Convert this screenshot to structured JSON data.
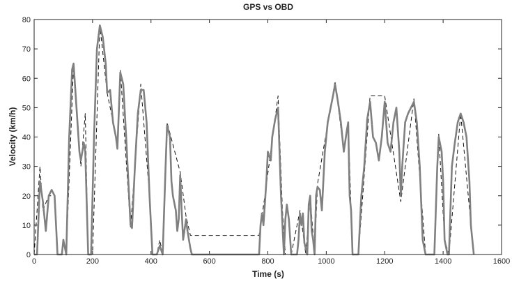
{
  "chart_data": {
    "type": "line",
    "title": "GPS vs OBD",
    "x_label": "Time (s)",
    "y_label": "Velocity (km/h)",
    "xlim": [
      0,
      1600
    ],
    "ylim": [
      0,
      80
    ],
    "xticks": [
      0,
      200,
      400,
      600,
      800,
      1000,
      1200,
      1400,
      1600
    ],
    "yticks": [
      0,
      10,
      20,
      30,
      40,
      50,
      60,
      70,
      80
    ],
    "grid": false,
    "series": [
      {
        "color": "#111111",
        "dashed": true,
        "x": [
          0,
          20,
          30,
          50,
          70,
          80,
          110,
          135,
          160,
          175,
          185,
          200,
          225,
          250,
          285,
          295,
          330,
          365,
          395,
          405,
          420,
          430,
          440,
          455,
          500,
          520,
          535,
          770,
          790,
          835,
          850,
          860,
          880,
          910,
          930,
          945,
          960,
          970,
          1030,
          1060,
          1075,
          1090,
          1110,
          1150,
          1200,
          1255,
          1300,
          1340,
          1370,
          1385,
          1405,
          1420,
          1460,
          1500,
          1505
        ],
        "values": [
          0,
          30,
          15,
          20,
          20,
          0,
          0,
          65,
          30,
          48,
          0,
          0,
          78,
          55,
          38,
          63,
          9,
          58,
          20,
          0,
          0,
          5,
          0,
          45,
          28,
          13,
          6.5,
          6.5,
          20,
          54,
          15,
          0,
          0,
          15,
          0,
          20,
          0,
          24,
          59,
          35,
          45,
          0,
          0,
          54,
          54,
          18,
          53,
          0,
          0,
          41,
          5,
          0,
          48,
          5,
          0
        ]
      },
      {
        "color": "#808080",
        "dashed": false,
        "x": [
          0,
          10,
          20,
          30,
          40,
          50,
          60,
          70,
          80,
          95,
          100,
          110,
          120,
          130,
          135,
          145,
          155,
          160,
          170,
          175,
          185,
          195,
          205,
          215,
          225,
          235,
          245,
          250,
          260,
          270,
          280,
          285,
          295,
          305,
          315,
          325,
          330,
          335,
          345,
          355,
          365,
          375,
          385,
          395,
          405,
          420,
          430,
          440,
          450,
          455,
          465,
          470,
          475,
          485,
          490,
          495,
          500,
          505,
          510,
          520,
          525,
          535,
          540,
          770,
          775,
          780,
          785,
          795,
          800,
          810,
          815,
          825,
          835,
          845,
          855,
          860,
          865,
          872,
          880,
          900,
          905,
          910,
          915,
          920,
          925,
          935,
          940,
          945,
          950,
          955,
          960,
          965,
          970,
          978,
          985,
          995,
          1005,
          1015,
          1025,
          1030,
          1040,
          1050,
          1060,
          1070,
          1075,
          1080,
          1085,
          1090,
          1110,
          1115,
          1120,
          1130,
          1140,
          1150,
          1160,
          1170,
          1180,
          1190,
          1200,
          1210,
          1220,
          1230,
          1240,
          1250,
          1255,
          1260,
          1270,
          1280,
          1290,
          1300,
          1310,
          1320,
          1330,
          1340,
          1370,
          1380,
          1385,
          1395,
          1400,
          1405,
          1415,
          1420,
          1430,
          1440,
          1450,
          1460,
          1470,
          1480,
          1490,
          1495,
          1500,
          1505
        ],
        "values": [
          0,
          0,
          25,
          18,
          8,
          20,
          22,
          20,
          0,
          0,
          5,
          0,
          40,
          63,
          65,
          50,
          35,
          32,
          38,
          35,
          0,
          0,
          40,
          70,
          78,
          74,
          65,
          55,
          56,
          45,
          40,
          36,
          62,
          58,
          40,
          20,
          10,
          9,
          30,
          48,
          56,
          56,
          45,
          20,
          0,
          0,
          3,
          0,
          30,
          44,
          40,
          25,
          20,
          15,
          8,
          12,
          27,
          15,
          5,
          12,
          8,
          2,
          0,
          0,
          10,
          14,
          10,
          25,
          35,
          32,
          40,
          46,
          50,
          20,
          0,
          12,
          17,
          12,
          0,
          0,
          5,
          14,
          10,
          14,
          4,
          0,
          17,
          20,
          8,
          5,
          0,
          20,
          23,
          22,
          15,
          35,
          45,
          50,
          55,
          58,
          52,
          45,
          35,
          42,
          45,
          20,
          15,
          0,
          0,
          10,
          20,
          30,
          46,
          52,
          40,
          38,
          32,
          40,
          52,
          38,
          35,
          45,
          50,
          35,
          20,
          30,
          45,
          48,
          50,
          52,
          45,
          30,
          5,
          0,
          0,
          30,
          40,
          35,
          25,
          5,
          0,
          0,
          30,
          38,
          45,
          48,
          45,
          40,
          25,
          10,
          5,
          0
        ]
      }
    ]
  }
}
